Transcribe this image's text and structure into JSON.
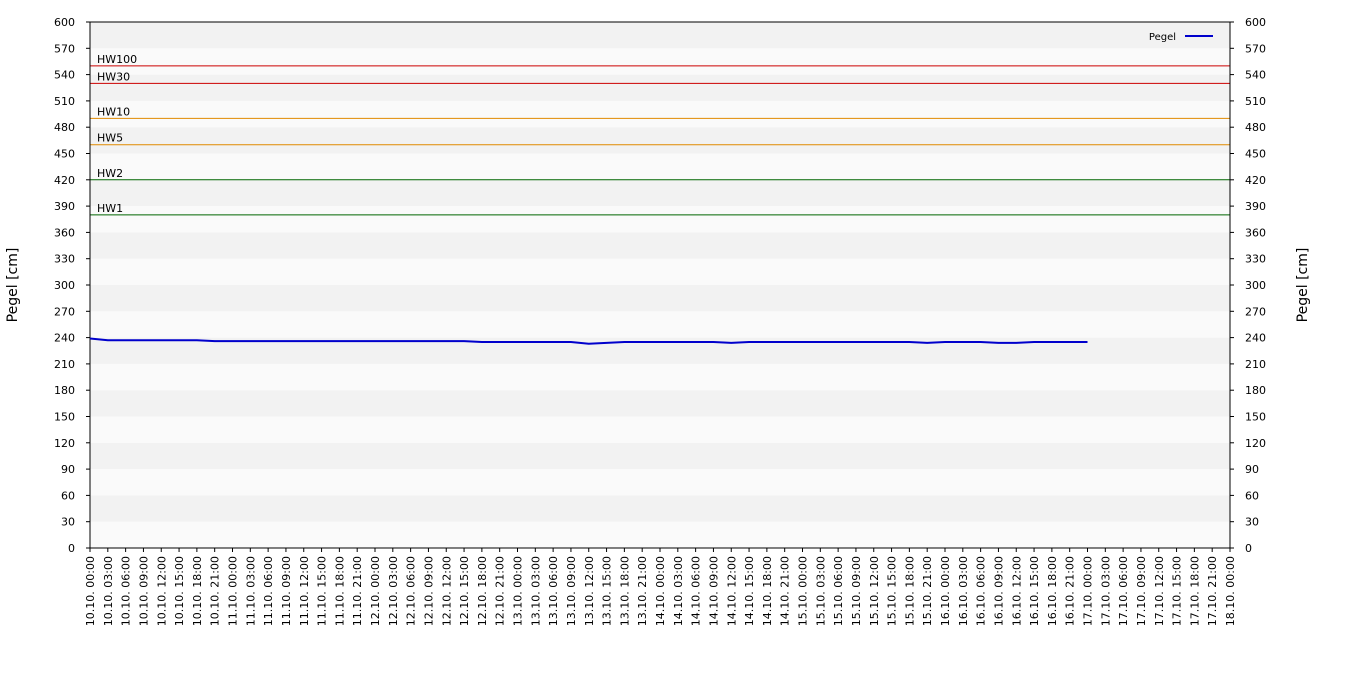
{
  "chart_data": {
    "type": "line",
    "ylabel": "Pegel [cm]",
    "y2label": "Pegel [cm]",
    "ylim": [
      0,
      600
    ],
    "yticks": [
      0,
      30,
      60,
      90,
      120,
      150,
      180,
      210,
      240,
      270,
      300,
      330,
      360,
      390,
      420,
      450,
      480,
      510,
      540,
      570,
      600
    ],
    "y2lim": [
      0,
      600
    ],
    "y2ticks": [
      0,
      30,
      60,
      90,
      120,
      150,
      180,
      210,
      240,
      270,
      300,
      330,
      360,
      390,
      420,
      450,
      480,
      510,
      540,
      570,
      600
    ],
    "categories": [
      "10.10. 00:00",
      "10.10. 03:00",
      "10.10. 06:00",
      "10.10. 09:00",
      "10.10. 12:00",
      "10.10. 15:00",
      "10.10. 18:00",
      "10.10. 21:00",
      "11.10. 00:00",
      "11.10. 03:00",
      "11.10. 06:00",
      "11.10. 09:00",
      "11.10. 12:00",
      "11.10. 15:00",
      "11.10. 18:00",
      "11.10. 21:00",
      "12.10. 00:00",
      "12.10. 03:00",
      "12.10. 06:00",
      "12.10. 09:00",
      "12.10. 12:00",
      "12.10. 15:00",
      "12.10. 18:00",
      "12.10. 21:00",
      "13.10. 00:00",
      "13.10. 03:00",
      "13.10. 06:00",
      "13.10. 09:00",
      "13.10. 12:00",
      "13.10. 15:00",
      "13.10. 18:00",
      "13.10. 21:00",
      "14.10. 00:00",
      "14.10. 03:00",
      "14.10. 06:00",
      "14.10. 09:00",
      "14.10. 12:00",
      "14.10. 15:00",
      "14.10. 18:00",
      "14.10. 21:00",
      "15.10. 00:00",
      "15.10. 03:00",
      "15.10. 06:00",
      "15.10. 09:00",
      "15.10. 12:00",
      "15.10. 15:00",
      "15.10. 18:00",
      "15.10. 21:00",
      "16.10. 00:00",
      "16.10. 03:00",
      "16.10. 06:00",
      "16.10. 09:00",
      "16.10. 12:00",
      "16.10. 15:00",
      "16.10. 18:00",
      "16.10. 21:00",
      "17.10. 00:00",
      "17.10. 03:00",
      "17.10. 06:00",
      "17.10. 09:00",
      "17.10. 12:00",
      "17.10. 15:00",
      "17.10. 18:00",
      "17.10. 21:00",
      "18.10. 00:00"
    ],
    "series": [
      {
        "name": "Pegel",
        "color": "#0000cc",
        "values": [
          239,
          237,
          237,
          237,
          237,
          237,
          237,
          236,
          236,
          236,
          236,
          236,
          236,
          236,
          236,
          236,
          236,
          236,
          236,
          236,
          236,
          236,
          235,
          235,
          235,
          235,
          235,
          235,
          233,
          234,
          235,
          235,
          235,
          235,
          235,
          235,
          234,
          235,
          235,
          235,
          235,
          235,
          235,
          235,
          235,
          235,
          235,
          234,
          235,
          235,
          235,
          234,
          234,
          235,
          235,
          235,
          235,
          null,
          null,
          null,
          null,
          null,
          null,
          null,
          null
        ]
      }
    ],
    "hlines": [
      {
        "label": "HW100",
        "value": 550,
        "color": "#cc0000"
      },
      {
        "label": "HW30",
        "value": 530,
        "color": "#cc0000"
      },
      {
        "label": "HW10",
        "value": 490,
        "color": "#e08a00"
      },
      {
        "label": "HW5",
        "value": 460,
        "color": "#e08a00"
      },
      {
        "label": "HW2",
        "value": 420,
        "color": "#006600"
      },
      {
        "label": "HW1",
        "value": 380,
        "color": "#006600"
      }
    ],
    "legend": "top-right",
    "band_colors": [
      "#fafafa",
      "#f2f2f2"
    ]
  }
}
